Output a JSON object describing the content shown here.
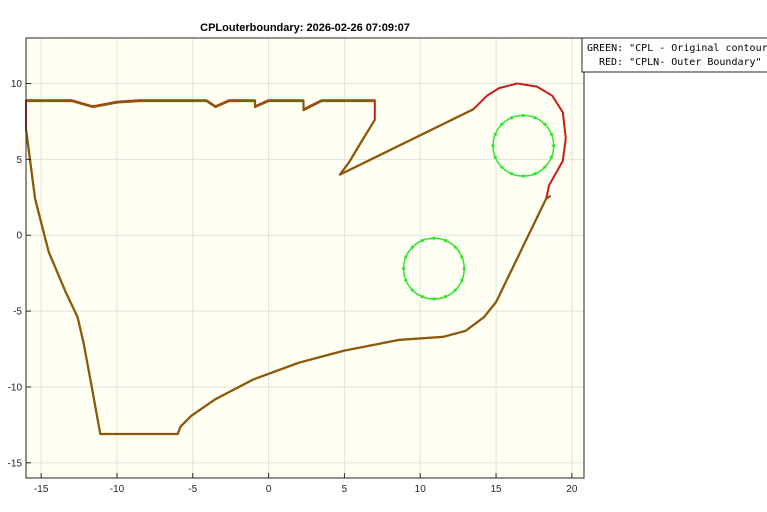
{
  "chart_data": {
    "type": "line",
    "title": "CPLouterboundary: 2026-02-26 07:09:07",
    "xlabel": "",
    "ylabel": "",
    "xlim": [
      -16,
      20.8
    ],
    "ylim": [
      -16,
      13
    ],
    "xticks": [
      -15,
      -10,
      -5,
      0,
      5,
      10,
      15,
      20
    ],
    "yticks": [
      10,
      5,
      0,
      -5,
      -10,
      -15
    ],
    "grid": true,
    "legend": {
      "placement": "top-right-outside",
      "entries": [
        "GREEN: \"CPL - Original contour\"",
        "RED: \"CPLN- Outer Boundary\""
      ]
    },
    "colors": {
      "green": "#2ee62e",
      "red": "#cc1a1a",
      "axes_bg": "#fffff2",
      "grid": "#e2e2e2"
    },
    "series": [
      {
        "kind": "outer-boundary-red",
        "x": [
          -16,
          -14.5,
          -13,
          -11.6,
          -10,
          -8.5,
          -7,
          -5.5,
          -4.1,
          -3.5,
          -2.6,
          -0.9,
          -0.9,
          0,
          2.3,
          2.3,
          3.5,
          7,
          7,
          6.2,
          5.3,
          4.7,
          13.5,
          14.4,
          15.2,
          16.4,
          17.7,
          18.7,
          19.4,
          19.6,
          19.4,
          18.5,
          18.3,
          15,
          14.2,
          13,
          11.5,
          8.6,
          5,
          2,
          -1,
          -3.5,
          -5.1,
          -5.8,
          -6,
          -11.1,
          -11.7,
          -12.2,
          -12.6,
          -13.4,
          -14.5,
          -15.4,
          -16,
          -16
        ],
        "y": [
          8.9,
          8.9,
          8.9,
          8.5,
          8.8,
          8.9,
          8.9,
          8.9,
          8.9,
          8.5,
          8.9,
          8.9,
          8.5,
          8.9,
          8.9,
          8.3,
          8.9,
          8.9,
          7.6,
          6.3,
          4.8,
          4.0,
          8.3,
          9.2,
          9.7,
          10.0,
          9.8,
          9.2,
          8.1,
          6.4,
          4.9,
          3.3,
          2.4,
          -4.4,
          -5.4,
          -6.3,
          -6.7,
          -6.9,
          -7.6,
          -8.4,
          -9.5,
          -10.8,
          -11.9,
          -12.6,
          -13.1,
          -13.1,
          -9.8,
          -7.1,
          -5.4,
          -3.7,
          -1.1,
          2.4,
          7.0,
          8.9
        ]
      },
      {
        "kind": "original-contour-olive",
        "x": [
          -16,
          -15.4,
          -14.5,
          -13.4,
          -12.6,
          -12.2,
          -11.7,
          -11.1,
          -11,
          -11,
          -6,
          -5.8,
          -5.1,
          -3.5,
          -1,
          2,
          5,
          8.6,
          11.5,
          13,
          14.2,
          15,
          18.3,
          18.6
        ],
        "y": [
          7.0,
          2.4,
          -1.1,
          -3.7,
          -5.4,
          -7.1,
          -9.8,
          -13.1,
          -13.1,
          -13.1,
          -13.1,
          -12.6,
          -11.9,
          -10.8,
          -9.5,
          -8.4,
          -7.6,
          -6.9,
          -6.7,
          -6.3,
          -5.4,
          -4.4,
          2.4,
          2.6
        ]
      },
      {
        "kind": "original-contour-olive-2",
        "x": [
          -16,
          -14.5,
          -13,
          -11.6,
          -10,
          -8.5,
          -7,
          -5.5,
          -4.1,
          -3.5,
          -2.6,
          -0.9,
          -0.9,
          0,
          2.3,
          2.3,
          3.5,
          7
        ],
        "y": [
          8.85,
          8.85,
          8.85,
          8.45,
          8.75,
          8.85,
          8.85,
          8.85,
          8.85,
          8.45,
          8.85,
          8.85,
          8.45,
          8.85,
          8.85,
          8.25,
          8.85,
          8.85
        ]
      },
      {
        "kind": "original-contour-olive-3",
        "x": [
          7,
          6.2,
          5.3,
          4.7,
          13.5
        ],
        "y": [
          7.6,
          6.3,
          4.8,
          4.0,
          8.3
        ]
      }
    ],
    "circles": [
      {
        "kind": "hole-upper",
        "cx": 16.8,
        "cy": 5.9,
        "r": 2.0,
        "markers": 16
      },
      {
        "kind": "hole-lower",
        "cx": 10.9,
        "cy": -2.2,
        "r": 2.0,
        "markers": 16
      }
    ]
  }
}
